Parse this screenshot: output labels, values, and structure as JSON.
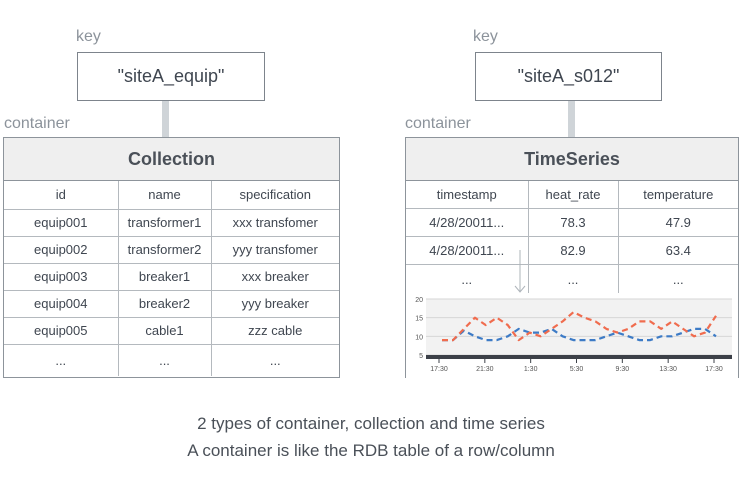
{
  "left": {
    "key_label": "key",
    "key_value": "\"siteA_equip\"",
    "container_label": "container",
    "title": "Collection",
    "columns": [
      "id",
      "name",
      "specification"
    ],
    "rows": [
      [
        "equip001",
        "transformer1",
        "xxx transfomer"
      ],
      [
        "equip002",
        "transformer2",
        "yyy transfomer"
      ],
      [
        "equip003",
        "breaker1",
        "xxx breaker"
      ],
      [
        "equip004",
        "breaker2",
        "yyy breaker"
      ],
      [
        "equip005",
        "cable1",
        "zzz cable"
      ],
      [
        "...",
        "...",
        "..."
      ]
    ]
  },
  "right": {
    "key_label": "key",
    "key_value": "\"siteA_s012\"",
    "container_label": "container",
    "title": "TimeSeries",
    "columns": [
      "timestamp",
      "heat_rate",
      "temperature"
    ],
    "rows": [
      [
        "4/28/20011...",
        "78.3",
        "47.9"
      ],
      [
        "4/28/20011...",
        "82.9",
        "63.4"
      ],
      [
        "...",
        "...",
        "..."
      ]
    ]
  },
  "chart_data": {
    "type": "line",
    "x_ticks": [
      "17:30",
      "21:30",
      "1:30",
      "5:30",
      "9:30",
      "13:30",
      "17:30"
    ],
    "y_ticks": [
      5,
      10,
      15,
      20
    ],
    "ylim": [
      5,
      20
    ],
    "colors": {
      "blue": "#3d7bc6",
      "orange": "#f06c4e"
    },
    "series": [
      {
        "values": [
          9,
          9,
          11.5,
          10,
          9,
          9,
          10,
          12,
          11,
          11,
          12,
          10,
          9,
          9,
          9,
          10,
          11,
          10,
          9,
          9,
          10,
          10,
          11,
          12,
          12,
          10
        ]
      },
      {
        "values": [
          9,
          9,
          12,
          15,
          13,
          15,
          13,
          9,
          11,
          10,
          12,
          14,
          16.5,
          15,
          14,
          12,
          11,
          12,
          14,
          14,
          12,
          14,
          12,
          10,
          11,
          15.5
        ]
      }
    ]
  },
  "caption": {
    "line1": "2 types of container, collection and time series",
    "line2": "A container is like the RDB table of a row/column"
  }
}
